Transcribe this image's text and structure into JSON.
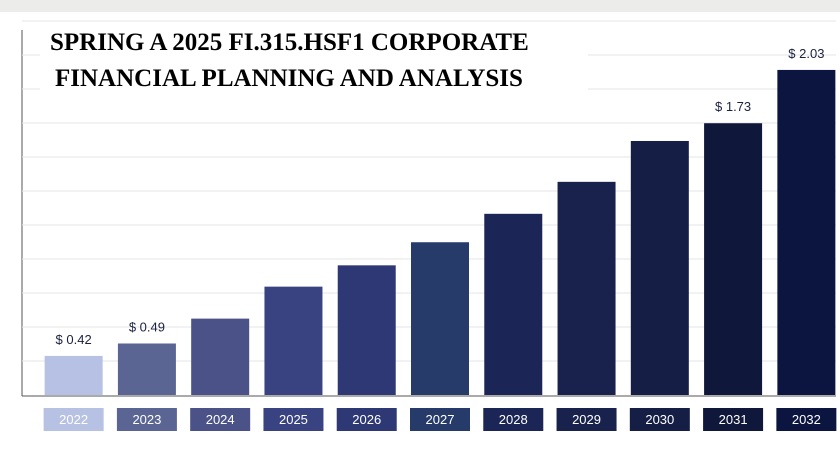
{
  "chart_data": {
    "type": "bar",
    "title": [
      "SPRING A 2025 FI.315.HSF1 CORPORATE",
      "FINANCIAL PLANNING AND ANALYSIS"
    ],
    "categories": [
      "2022",
      "2023",
      "2024",
      "2025",
      "2026",
      "2027",
      "2028",
      "2029",
      "2030",
      "2031",
      "2032"
    ],
    "values": [
      0.42,
      0.49,
      0.63,
      0.81,
      0.93,
      1.06,
      1.22,
      1.4,
      1.63,
      1.73,
      2.03
    ],
    "value_labels": [
      "$ 0.42",
      "$ 0.49",
      null,
      null,
      null,
      null,
      null,
      null,
      null,
      "$ 1.73",
      "$ 2.03"
    ],
    "colors": [
      "#b7c1e3",
      "#5a6593",
      "#4a5288",
      "#3a4382",
      "#2e3874",
      "#263b6a",
      "#1b2656",
      "#18224d",
      "#151e44",
      "#0f183a",
      "#0b1540"
    ],
    "ylim": [
      0.2,
      2.1
    ]
  }
}
